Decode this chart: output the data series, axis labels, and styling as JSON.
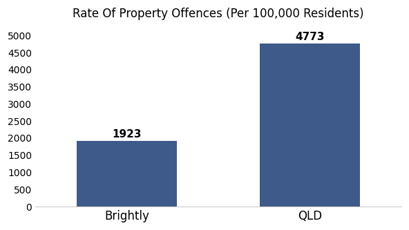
{
  "categories": [
    "Brightly",
    "QLD"
  ],
  "values": [
    1923,
    4773
  ],
  "bar_color": "#3d5a8a",
  "title": "Rate Of Property Offences (Per 100,000 Residents)",
  "title_fontsize": 12,
  "ylim": [
    0,
    5250
  ],
  "yticks": [
    0,
    500,
    1000,
    1500,
    2000,
    2500,
    3000,
    3500,
    4000,
    4500,
    5000
  ],
  "tick_fontsize": 10,
  "bar_label_fontsize": 11,
  "xlabel_fontsize": 12,
  "background_color": "#ffffff",
  "bar_width": 0.55
}
